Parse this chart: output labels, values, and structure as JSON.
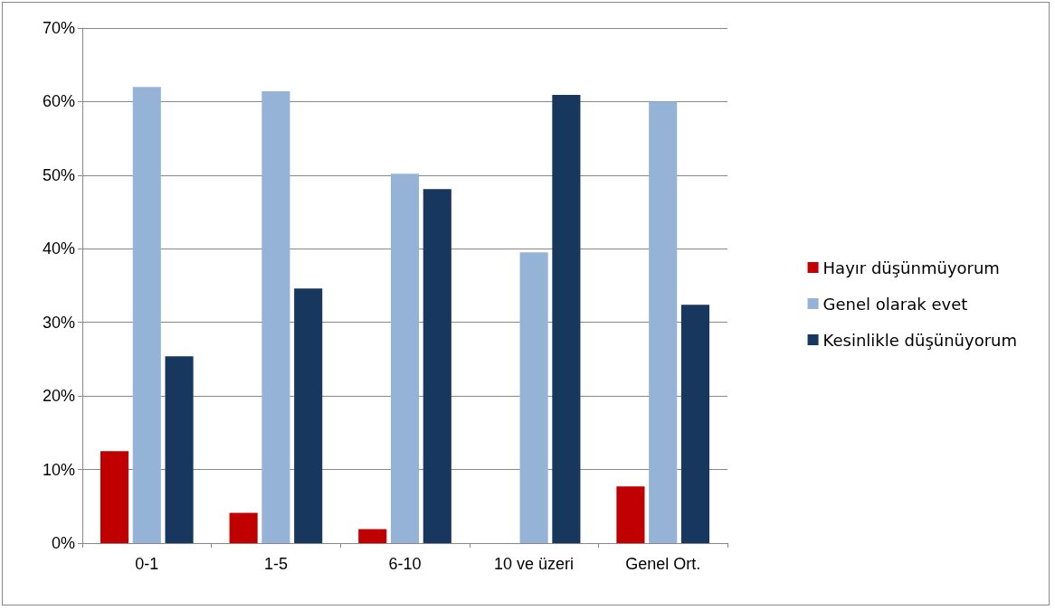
{
  "chart_data": {
    "type": "bar",
    "categories": [
      "0-1",
      "1-5",
      "6-10",
      "10 ve üzeri",
      "Genel Ort."
    ],
    "series": [
      {
        "name": "Hayır düşünmüyorum",
        "color": "#c00000",
        "values": [
          12.5,
          4.1,
          1.9,
          0,
          7.7
        ]
      },
      {
        "name": "Genel olarak evet",
        "color": "#95b3d7",
        "values": [
          62.0,
          61.4,
          50.2,
          39.5,
          60.0
        ]
      },
      {
        "name": "Kesinlikle düşünüyorum",
        "color": "#17375e",
        "values": [
          25.4,
          34.6,
          48.1,
          60.9,
          32.4
        ]
      }
    ],
    "ylim": [
      0,
      70
    ],
    "yticks": [
      {
        "value": 0,
        "label": "0%"
      },
      {
        "value": 10,
        "label": "10%"
      },
      {
        "value": 20,
        "label": "20%"
      },
      {
        "value": 30,
        "label": "30%"
      },
      {
        "value": 40,
        "label": "40%"
      },
      {
        "value": 50,
        "label": "50%"
      },
      {
        "value": 60,
        "label": "60%"
      },
      {
        "value": 70,
        "label": "70%"
      }
    ],
    "grid": "y",
    "legend": "right"
  }
}
